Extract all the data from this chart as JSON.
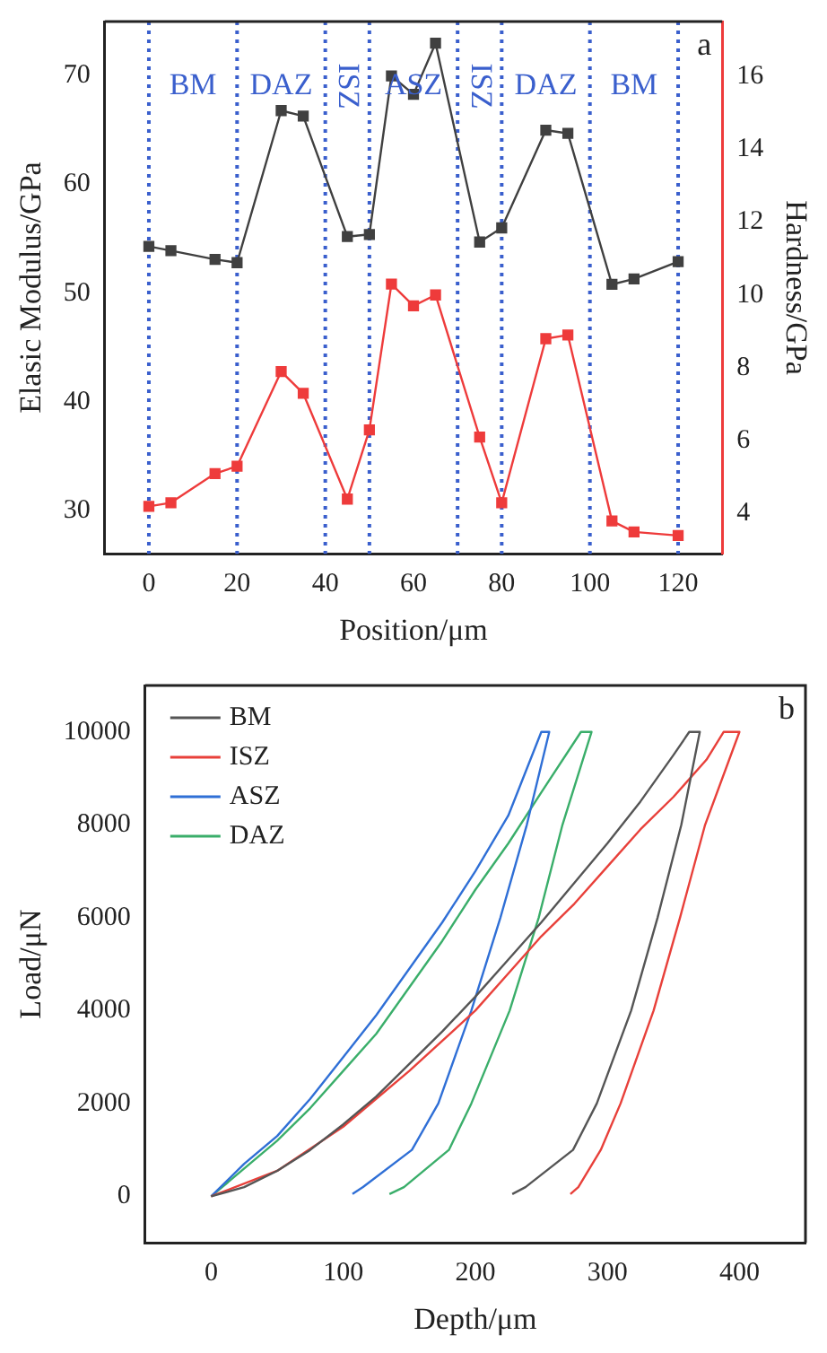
{
  "chart_data": [
    {
      "type": "line",
      "xlabel": "Position/μm",
      "ylabel": "Elasic Modulus/GPa",
      "y2label": "Hardness/GPa",
      "x": [
        0,
        5,
        15,
        20,
        30,
        35,
        45,
        50,
        55,
        60,
        65,
        75,
        80,
        90,
        95,
        105,
        110,
        120
      ],
      "series": [
        {
          "color": "#404040",
          "values": [
            54.3,
            53.9,
            53.1,
            52.8,
            66.8,
            66.3,
            55.2,
            55.4,
            70,
            68.3,
            73,
            54.7,
            56,
            65,
            64.7,
            50.8,
            51.3,
            52.9
          ]
        },
        {
          "color": "#ee3b3b",
          "axis": "y2",
          "values": [
            4.2,
            4.3,
            5.1,
            5.3,
            7.9,
            7.3,
            4.4,
            6.3,
            10.3,
            9.7,
            10,
            6.1,
            4.3,
            8.8,
            8.9,
            3.8,
            3.5,
            3.4
          ]
        }
      ],
      "xlim": [
        -10,
        130
      ],
      "xticks": [
        0,
        20,
        40,
        60,
        80,
        100,
        120
      ],
      "ylim": [
        26,
        75
      ],
      "yticks": [
        30,
        40,
        50,
        60,
        70
      ],
      "y2lim": [
        2.9,
        17.5
      ],
      "y2ticks": [
        4,
        6,
        8,
        10,
        12,
        14,
        16
      ],
      "marker": "square",
      "line_style": "solid",
      "grid": false,
      "legend": false,
      "ref_lines": [
        {
          "axis": "x",
          "value": 0,
          "color": "#3a5fcd",
          "line_style": "dotted"
        },
        {
          "axis": "x",
          "value": 20,
          "color": "#3a5fcd",
          "line_style": "dotted"
        },
        {
          "axis": "x",
          "value": 40,
          "color": "#3a5fcd",
          "line_style": "dotted"
        },
        {
          "axis": "x",
          "value": 50,
          "color": "#3a5fcd",
          "line_style": "dotted"
        },
        {
          "axis": "x",
          "value": 70,
          "color": "#3a5fcd",
          "line_style": "dotted"
        },
        {
          "axis": "x",
          "value": 80,
          "color": "#3a5fcd",
          "line_style": "dotted"
        },
        {
          "axis": "x",
          "value": 100,
          "color": "#3a5fcd",
          "line_style": "dotted"
        },
        {
          "axis": "x",
          "value": 120,
          "color": "#3a5fcd",
          "line_style": "dotted"
        }
      ],
      "annotations": [
        "BM",
        "DAZ",
        "ISZ",
        "ASZ",
        "ISZ",
        "DAZ",
        "BM",
        "a"
      ]
    },
    {
      "type": "line",
      "xlabel": "Depth/μm",
      "ylabel": "Load/μN",
      "series": [
        {
          "name": "BM",
          "color": "#555555",
          "x": [
            0,
            25,
            50,
            75,
            100,
            125,
            150,
            175,
            200,
            225,
            250,
            275,
            300,
            325,
            350,
            362,
            370,
            356,
            338,
            318,
            292,
            274,
            238,
            228
          ],
          "values": [
            0,
            200,
            550,
            1000,
            1550,
            2150,
            2850,
            3550,
            4300,
            5100,
            5900,
            6750,
            7600,
            8500,
            9500,
            10000,
            10000,
            8000,
            6000,
            4000,
            2000,
            1000,
            200,
            50
          ]
        },
        {
          "name": "ISZ",
          "color": "#e8403a",
          "x": [
            0,
            50,
            100,
            150,
            200,
            225,
            250,
            275,
            300,
            325,
            350,
            375,
            388,
            400,
            374,
            355,
            335,
            310,
            295,
            278,
            272
          ],
          "values": [
            0,
            550,
            1500,
            2700,
            4000,
            4800,
            5600,
            6300,
            7100,
            7900,
            8600,
            9400,
            10000,
            10000,
            8000,
            6000,
            4000,
            2000,
            1000,
            200,
            50
          ]
        },
        {
          "name": "ASZ",
          "color": "#2f6fd6",
          "x": [
            0,
            25,
            50,
            75,
            100,
            125,
            150,
            175,
            200,
            225,
            250,
            256,
            239,
            219,
            197,
            172,
            152,
            115,
            107
          ],
          "values": [
            0,
            700,
            1300,
            2100,
            3000,
            3900,
            4900,
            5900,
            7000,
            8200,
            10000,
            10000,
            8000,
            6000,
            4000,
            2000,
            1000,
            200,
            50
          ]
        },
        {
          "name": "DAZ",
          "color": "#3aae6a",
          "x": [
            0,
            25,
            50,
            75,
            100,
            125,
            150,
            175,
            200,
            225,
            250,
            280,
            288,
            266,
            248,
            226,
            197,
            180,
            146,
            135
          ],
          "values": [
            0,
            600,
            1200,
            1900,
            2700,
            3500,
            4500,
            5500,
            6600,
            7600,
            8700,
            10000,
            10000,
            8000,
            6000,
            4000,
            2000,
            1000,
            200,
            50
          ]
        }
      ],
      "xlim": [
        -50,
        450
      ],
      "xticks": [
        0,
        100,
        200,
        300,
        400
      ],
      "ylim": [
        -1000,
        11000
      ],
      "yticks": [
        0,
        2000,
        4000,
        6000,
        8000,
        10000
      ],
      "marker": "none",
      "line_style": "solid",
      "grid": false,
      "legend": "top left",
      "annotations": [
        "b"
      ]
    }
  ]
}
